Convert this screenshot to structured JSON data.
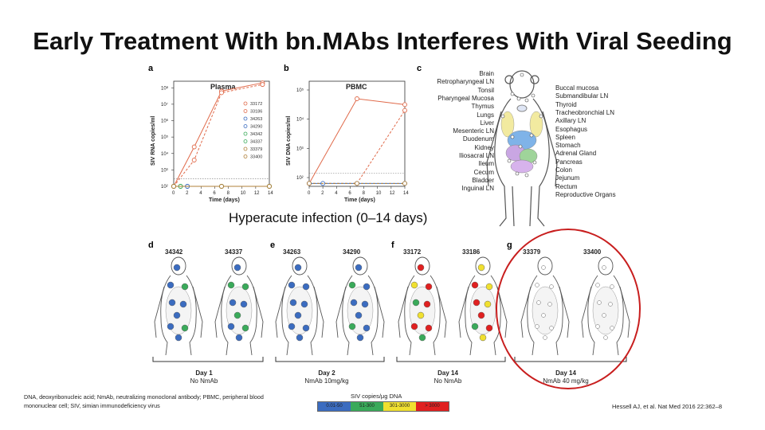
{
  "title": "Early Treatment With bn.MAbs Interferes With Viral Seeding",
  "panel_letters": [
    "a",
    "b",
    "c",
    "d",
    "e",
    "f",
    "g"
  ],
  "chart_data": [
    {
      "type": "line",
      "panel": "a",
      "title": "Plasma",
      "xlabel": "Time (days)",
      "ylabel": "SIV RNA copies/ml",
      "x_ticks": [
        "0",
        "2",
        "4",
        "6",
        "8",
        "10",
        "12",
        "14"
      ],
      "y_ticks": [
        "10²",
        "10³",
        "10⁴",
        "10⁵",
        "10⁶",
        "10⁷",
        "10⁸"
      ],
      "ylim": [
        2,
        8.4
      ],
      "log_scale": true,
      "series": [
        {
          "name": "33172",
          "color": "#e06a4a",
          "x": [
            0,
            3,
            7,
            13
          ],
          "y": [
            2,
            4.4,
            7.8,
            8.3
          ]
        },
        {
          "name": "33186",
          "color": "#e06a4a",
          "x": [
            0,
            3,
            7,
            13
          ],
          "y": [
            2,
            3.6,
            7.7,
            8.2
          ]
        },
        {
          "name": "34263",
          "color": "#3b6cc0",
          "x": [
            0,
            2,
            7,
            14
          ],
          "y": [
            2,
            2,
            2,
            2
          ]
        },
        {
          "name": "34290",
          "color": "#3b6cc0",
          "x": [
            0,
            2,
            7,
            14
          ],
          "y": [
            2,
            2,
            2,
            2
          ]
        },
        {
          "name": "34342",
          "color": "#3aaa5a",
          "x": [
            0,
            1,
            7,
            14
          ],
          "y": [
            2,
            2,
            2,
            2
          ]
        },
        {
          "name": "34337",
          "color": "#3aaa5a",
          "x": [
            0,
            1,
            7,
            14
          ],
          "y": [
            2,
            2,
            2,
            2
          ]
        },
        {
          "name": "33379",
          "color": "#b0813a",
          "x": [
            0,
            7,
            14
          ],
          "y": [
            2,
            2,
            2
          ]
        },
        {
          "name": "33400",
          "color": "#b0813a",
          "x": [
            0,
            7,
            14
          ],
          "y": [
            2,
            2,
            2
          ]
        }
      ]
    },
    {
      "type": "line",
      "panel": "b",
      "title": "PBMC",
      "xlabel": "Time (days)",
      "ylabel": "SIV DNA copies/ml",
      "x_ticks": [
        "0",
        "2",
        "4",
        "6",
        "8",
        "10",
        "12",
        "14"
      ],
      "y_ticks": [
        "10²",
        "10³",
        "10⁴",
        "10⁵"
      ],
      "ylim": [
        1.7,
        5.3
      ],
      "log_scale": true,
      "series": [
        {
          "name": "33172",
          "color": "#e06a4a",
          "x": [
            0,
            7,
            14
          ],
          "y": [
            1.8,
            4.7,
            4.5
          ]
        },
        {
          "name": "33186",
          "color": "#e06a4a",
          "x": [
            0,
            7,
            14
          ],
          "y": [
            1.8,
            1.8,
            4.3
          ]
        },
        {
          "name": "34263",
          "color": "#3b6cc0",
          "x": [
            0,
            2,
            7,
            14
          ],
          "y": [
            1.8,
            1.8,
            1.8,
            1.8
          ]
        },
        {
          "name": "33379",
          "color": "#b0813a",
          "x": [
            0,
            7,
            14
          ],
          "y": [
            1.8,
            1.8,
            1.8
          ]
        }
      ]
    }
  ],
  "organs_left": [
    "Brain",
    "Retropharyngeal LN",
    "Tonsil",
    "Pharyngeal Mucosa",
    "Thymus",
    "Lungs",
    "Liver",
    "Mesenteric LN",
    "Duodenum",
    "Kidney",
    "Iliosacral LN",
    "Ileum",
    "Cecum",
    "Bladder",
    "Inguinal LN"
  ],
  "organs_right": [
    "Buccal mucosa",
    "Submandibular LN",
    "Thyroid",
    "Tracheobronchial LN",
    "Axillary LN",
    "Esophagus",
    "Spleen",
    "Stomach",
    "Adrenal Gland",
    "Pancreas",
    "Colon",
    "Jejunum",
    "Rectum",
    "Reproductive Organs"
  ],
  "hyperacute_label": "Hyperacute infection (0–14 days)",
  "animals": [
    "34342",
    "34337",
    "34263",
    "34290",
    "33172",
    "33186",
    "33379",
    "33400"
  ],
  "groups": [
    {
      "line1": "Day 1",
      "line2": "No NmAb"
    },
    {
      "line1": "Day 2",
      "line2": "NmAb 10mg/kg"
    },
    {
      "line1": "Day 14",
      "line2": "No NmAb"
    },
    {
      "line1": "Day 14",
      "line2": "NmAb 40 mg/kg"
    }
  ],
  "scale": {
    "title": "SIV copies/μg DNA",
    "bins": [
      {
        "label": "0.01-50",
        "color": "#3b6cc0"
      },
      {
        "label": "51-300",
        "color": "#3aaa5a"
      },
      {
        "label": "301-3000",
        "color": "#f0e030"
      },
      {
        "label": "> 3000",
        "color": "#e02020"
      }
    ]
  },
  "footnote": "DNA, deoxyribonucleic acid; NmAb, neutralizing monoclonal antibody; PBMC, peripheral blood mononuclear cell; SIV, simian immunodeficiency virus",
  "citation": "Hessell AJ, et al. Nat Med 2016 22:362–8"
}
